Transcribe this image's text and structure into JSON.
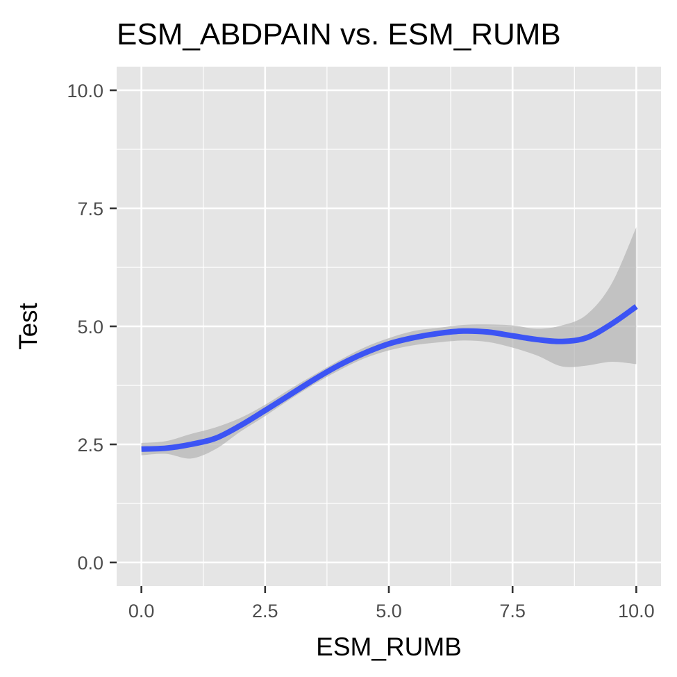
{
  "chart_data": {
    "type": "line",
    "title": "ESM_ABDPAIN vs. ESM_RUMB",
    "xlabel": "ESM_RUMB",
    "ylabel": "Test",
    "xlim": [
      -0.5,
      10.5
    ],
    "ylim": [
      -0.5,
      10.5
    ],
    "x_ticks": [
      0.0,
      2.5,
      5.0,
      7.5,
      10.0
    ],
    "x_tick_labels": [
      "0.0",
      "2.5",
      "5.0",
      "7.5",
      "10.0"
    ],
    "y_ticks": [
      0.0,
      2.5,
      5.0,
      7.5,
      10.0
    ],
    "y_tick_labels": [
      "0.0",
      "2.5",
      "5.0",
      "7.5",
      "10.0"
    ],
    "grid": true,
    "legend": "none",
    "colors": {
      "panel_background": "#e5e5e5",
      "grid_line": "#ffffff",
      "line": "#3c54f4",
      "ribbon": "#b3b3b3",
      "tick": "#333333"
    },
    "series": [
      {
        "x": [
          0,
          0.5,
          1,
          1.5,
          2,
          2.5,
          3,
          3.5,
          4,
          4.5,
          5,
          5.5,
          6,
          6.5,
          7,
          7.5,
          8,
          8.5,
          9,
          9.5,
          10
        ],
        "y": [
          2.4,
          2.42,
          2.5,
          2.63,
          2.9,
          3.22,
          3.55,
          3.88,
          4.18,
          4.43,
          4.63,
          4.76,
          4.85,
          4.9,
          4.88,
          4.8,
          4.72,
          4.68,
          4.76,
          5.05,
          5.42
        ],
        "lower": [
          2.27,
          2.3,
          2.2,
          2.4,
          2.77,
          3.1,
          3.45,
          3.78,
          4.07,
          4.32,
          4.49,
          4.6,
          4.66,
          4.7,
          4.67,
          4.55,
          4.38,
          4.15,
          4.17,
          4.25,
          4.2
        ],
        "upper": [
          2.53,
          2.57,
          2.72,
          2.86,
          3.06,
          3.34,
          3.67,
          3.98,
          4.28,
          4.55,
          4.75,
          4.9,
          4.97,
          5.03,
          5.04,
          5.02,
          4.95,
          5.02,
          5.25,
          5.9,
          7.1
        ]
      }
    ]
  }
}
